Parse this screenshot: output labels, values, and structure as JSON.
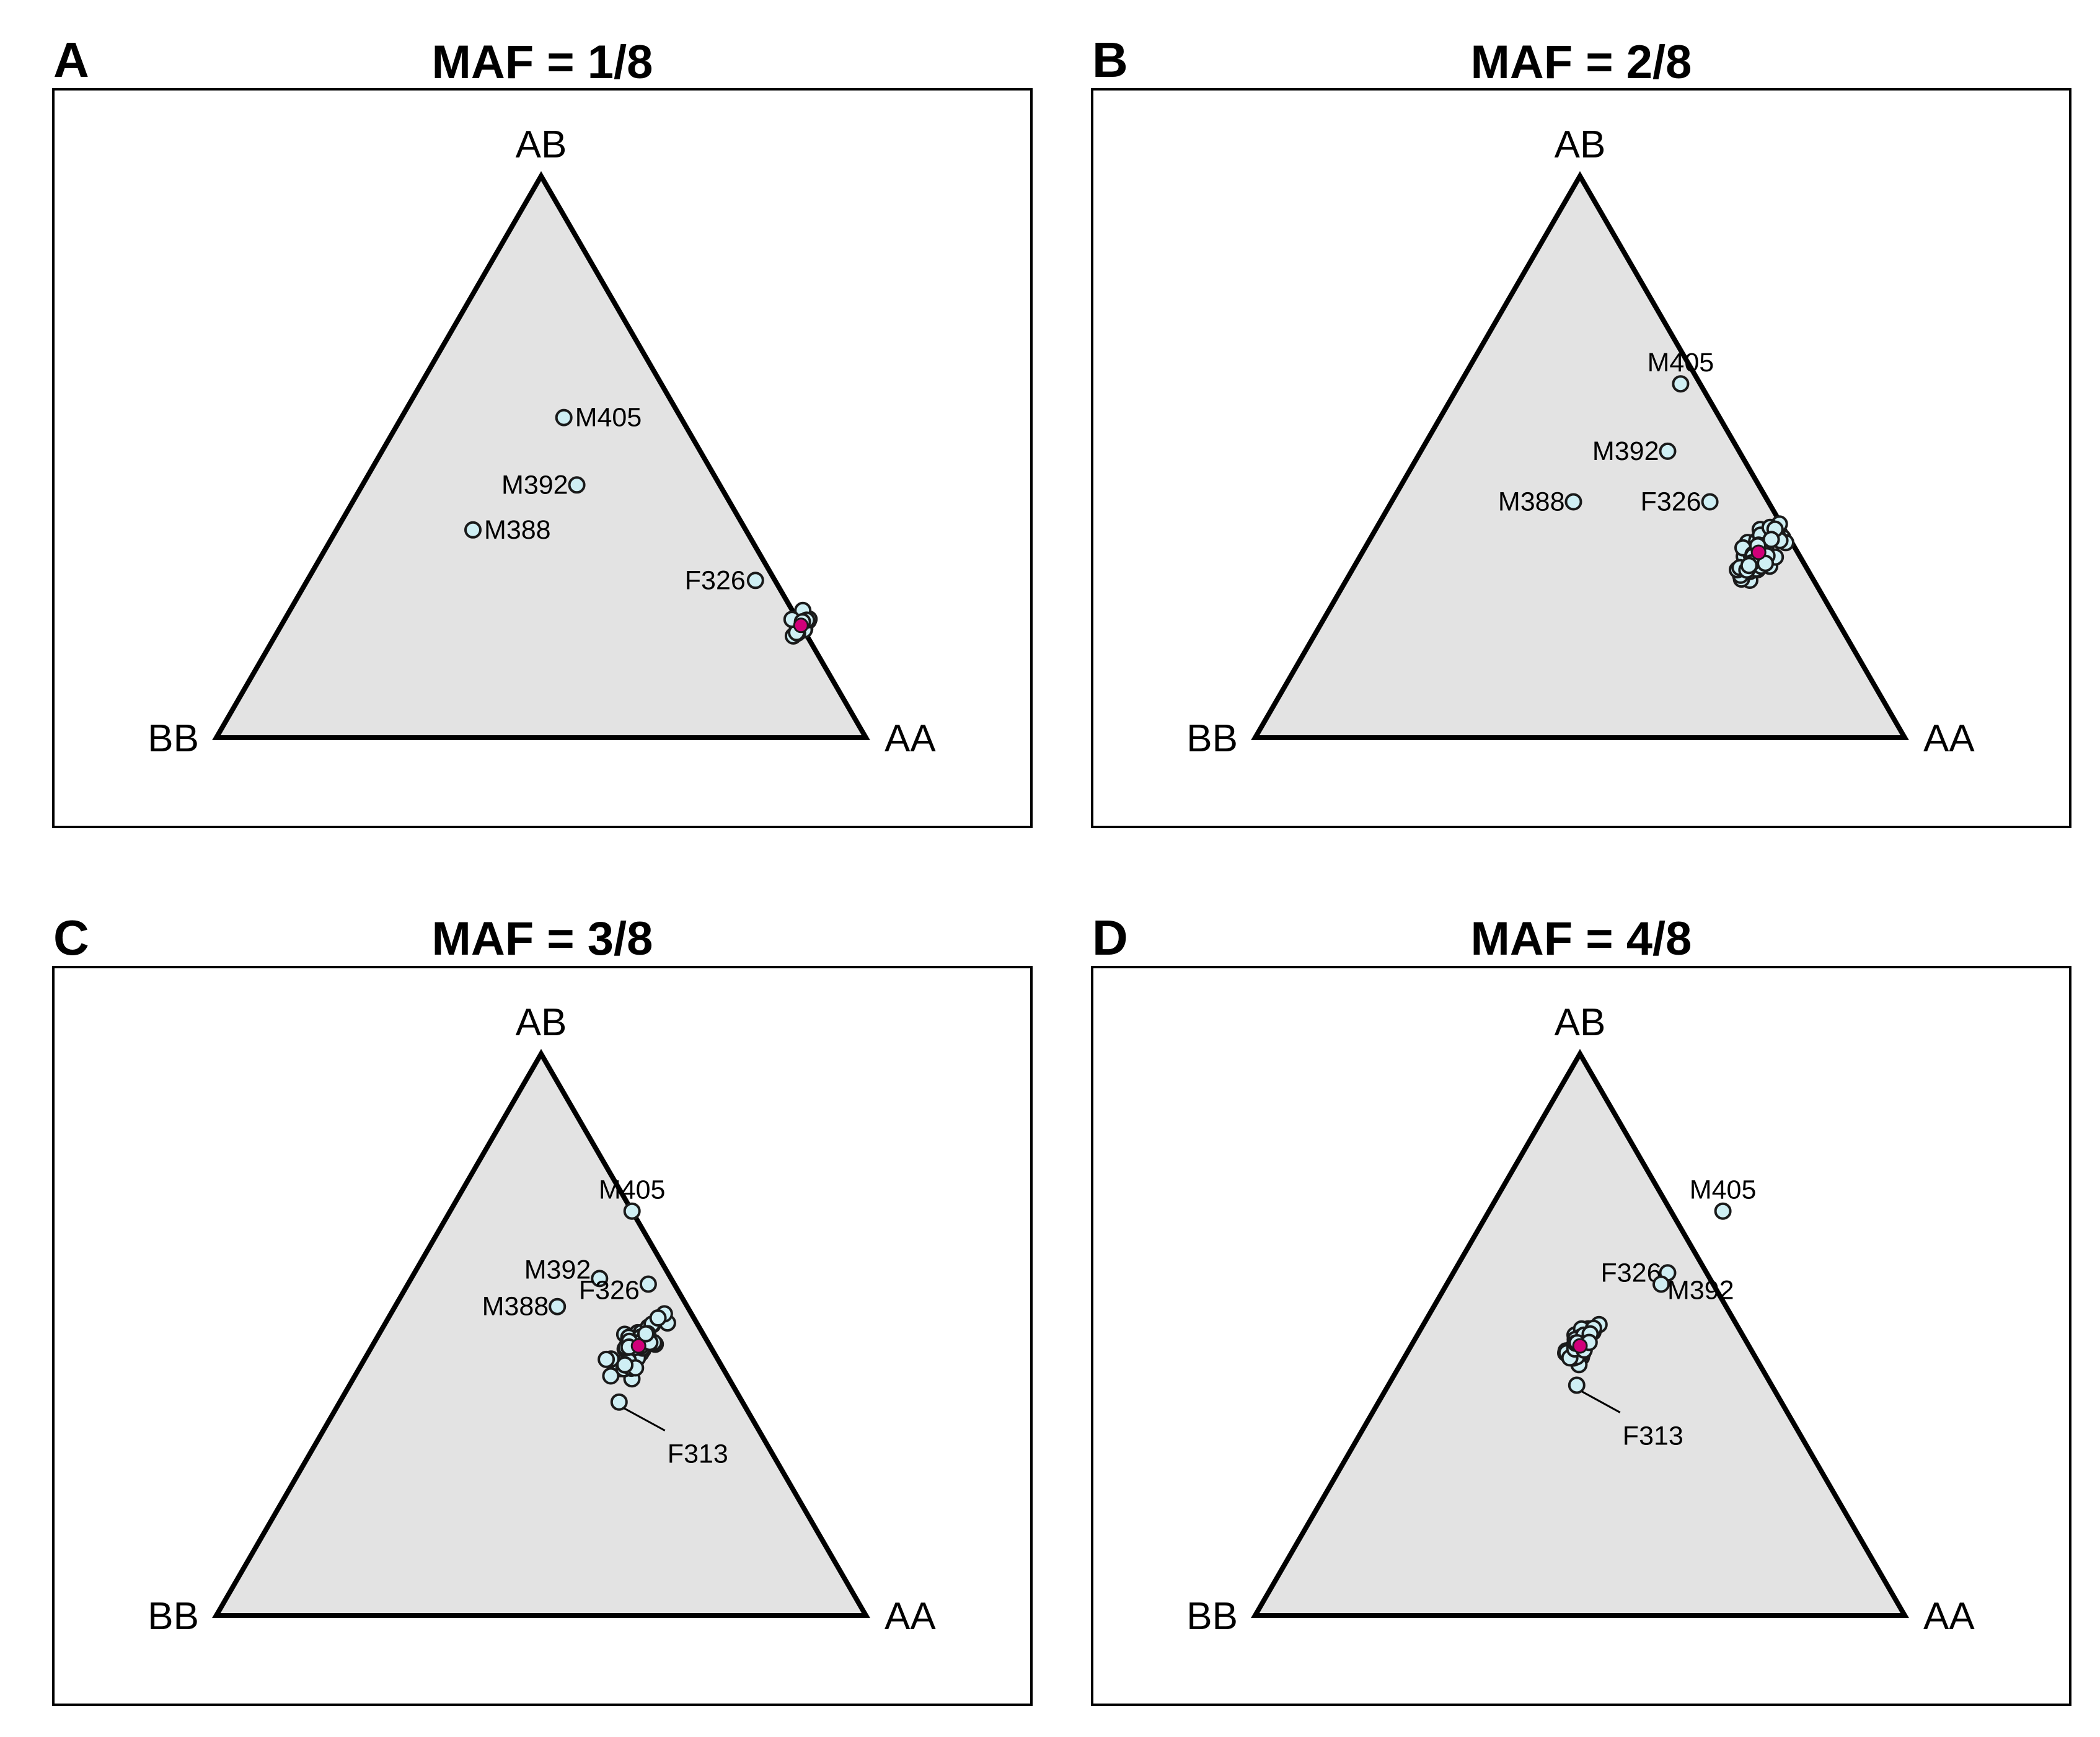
{
  "chart_data": [
    {
      "type": "scatter",
      "panel": "A",
      "title": "MAF = 1/8",
      "vertices": {
        "top": "AB",
        "left": "BB",
        "right": "AA"
      },
      "colors": {
        "point_fill": "#cfeff4",
        "mean_fill": "#d1007a",
        "triangle_fill": "#e3e3e3"
      },
      "labeled_points": [
        {
          "label": "M405",
          "AA": 0.25,
          "AB": 0.57,
          "BB": 0.18
        },
        {
          "label": "M392",
          "AA": 0.33,
          "AB": 0.45,
          "BB": 0.22
        },
        {
          "label": "M388",
          "AA": 0.21,
          "AB": 0.37,
          "BB": 0.42
        },
        {
          "label": "F326",
          "AA": 0.69,
          "AB": 0.28,
          "BB": 0.03
        }
      ],
      "cluster": {
        "center": {
          "AA": 0.8,
          "AB": 0.2,
          "BB": 0.0
        },
        "spread": 0.015,
        "count": 22
      },
      "mean_point": {
        "AA": 0.8,
        "AB": 0.2,
        "BB": 0.0
      }
    },
    {
      "type": "scatter",
      "panel": "B",
      "title": "MAF = 2/8",
      "vertices": {
        "top": "AB",
        "left": "BB",
        "right": "AA"
      },
      "colors": {
        "point_fill": "#cfeff4",
        "mean_fill": "#d1007a",
        "triangle_fill": "#e3e3e3"
      },
      "labeled_points": [
        {
          "label": "M405",
          "AA": 0.34,
          "AB": 0.63,
          "BB": 0.03
        },
        {
          "label": "M392",
          "AA": 0.38,
          "AB": 0.51,
          "BB": 0.11
        },
        {
          "label": "M388",
          "AA": 0.28,
          "AB": 0.42,
          "BB": 0.3
        },
        {
          "label": "F326",
          "AA": 0.49,
          "AB": 0.42,
          "BB": 0.09
        }
      ],
      "cluster": {
        "center": {
          "AA": 0.61,
          "AB": 0.33,
          "BB": 0.06
        },
        "spread": 0.03,
        "count": 60
      },
      "mean_point": {
        "AA": 0.61,
        "AB": 0.33,
        "BB": 0.06
      }
    },
    {
      "type": "scatter",
      "panel": "C",
      "title": "MAF = 3/8",
      "vertices": {
        "top": "AB",
        "left": "BB",
        "right": "AA"
      },
      "colors": {
        "point_fill": "#cfeff4",
        "mean_fill": "#d1007a",
        "triangle_fill": "#e3e3e3"
      },
      "labeled_points": [
        {
          "label": "M405",
          "AA": 0.28,
          "AB": 0.72,
          "BB": 0.0
        },
        {
          "label": "M392",
          "AA": 0.29,
          "AB": 0.6,
          "BB": 0.11
        },
        {
          "label": "F326",
          "AA": 0.37,
          "AB": 0.59,
          "BB": 0.04
        },
        {
          "label": "M388",
          "AA": 0.25,
          "AB": 0.55,
          "BB": 0.2
        },
        {
          "label": "F313",
          "AA": 0.43,
          "AB": 0.38,
          "BB": 0.19
        }
      ],
      "cluster": {
        "center": {
          "AA": 0.41,
          "AB": 0.48,
          "BB": 0.11
        },
        "spread": 0.03,
        "count": 55
      },
      "mean_point": {
        "AA": 0.41,
        "AB": 0.48,
        "BB": 0.11
      }
    },
    {
      "type": "scatter",
      "panel": "D",
      "title": "MAF = 4/8",
      "vertices": {
        "top": "AB",
        "left": "BB",
        "right": "AA"
      },
      "colors": {
        "point_fill": "#cfeff4",
        "mean_fill": "#d1007a",
        "triangle_fill": "#e3e3e3"
      },
      "labeled_points": [
        {
          "label": "M405",
          "AA": 0.36,
          "AB": 0.72,
          "BB": -0.08
        },
        {
          "label": "F326",
          "AA": 0.33,
          "AB": 0.61,
          "BB": 0.06
        },
        {
          "label": "M392",
          "AA": 0.33,
          "AB": 0.59,
          "BB": 0.08
        },
        {
          "label": "F313",
          "AA": 0.29,
          "AB": 0.41,
          "BB": 0.3
        }
      ],
      "cluster": {
        "center": {
          "AA": 0.26,
          "AB": 0.48,
          "BB": 0.26
        },
        "spread": 0.02,
        "count": 40
      },
      "mean_point": {
        "AA": 0.26,
        "AB": 0.48,
        "BB": 0.26
      }
    }
  ]
}
